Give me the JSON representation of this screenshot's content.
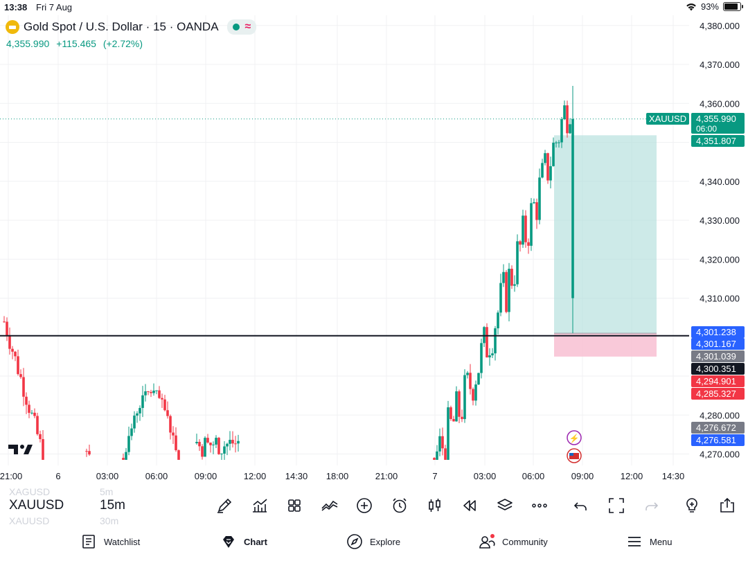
{
  "status_bar": {
    "time": "13:38",
    "date": "Fri 7 Aug",
    "battery": "93%"
  },
  "header": {
    "title": "Gold Spot / U.S. Dollar · 15 · OANDA",
    "price": "4,355.990",
    "change": "+115.465",
    "change_pct": "(+2.72%)",
    "up_color": "#089981",
    "down_color": "#f23645"
  },
  "price_axis": {
    "ticks": [
      "4,380.000",
      "4,370.000",
      "4,360.000",
      "4,340.000",
      "4,330.000",
      "4,320.000",
      "4,310.000",
      "4,280.000",
      "4,270.000"
    ],
    "tick_values": [
      4380,
      4370,
      4360,
      4340,
      4330,
      4320,
      4310,
      4280,
      4270
    ]
  },
  "time_axis": {
    "labels": [
      "21:00",
      "6",
      "03:00",
      "06:00",
      "09:00",
      "12:00",
      "14:30",
      "18:00",
      "21:00",
      "7",
      "03:00",
      "06:00",
      "09:00",
      "12:00",
      "14:30"
    ]
  },
  "price_tags": [
    {
      "label": "XAUUSD",
      "value": "4,355.990",
      "sub": "06:00",
      "price": 4355.99,
      "color": "#089981"
    },
    {
      "value": "4,351.807",
      "price": 4351.807,
      "color": "#089981"
    },
    {
      "value": "4,301.238",
      "price": 4301.238,
      "color": "#2962ff"
    },
    {
      "value": "4,301.167",
      "price": 4301.167,
      "color": "#2962ff"
    },
    {
      "value": "4,301.039",
      "price": 4301.039,
      "color": "#787b86"
    },
    {
      "value": "4,300.351",
      "price": 4300.351,
      "color": "#131722"
    },
    {
      "value": "4,294.901",
      "price": 4294.901,
      "color": "#f23645"
    },
    {
      "value": "4,285.327",
      "price": 4285.327,
      "color": "#f23645"
    },
    {
      "value": "4,276.672",
      "price": 4276.672,
      "color": "#787b86"
    },
    {
      "value": "4,276.581",
      "price": 4276.581,
      "color": "#2962ff"
    }
  ],
  "horizontal_line_price": 4300.351,
  "position_tool": {
    "entry": 4301.0,
    "target": 4351.807,
    "stop": 4295.0,
    "profit_color": "#b2dfdb",
    "loss_color": "#f8bbd0"
  },
  "toolbar": {
    "symbol": "XAUUSD",
    "symbol_prev": "XAGUSD",
    "symbol_next": "XAUUSD",
    "interval": "15m",
    "interval_prev": "5m",
    "interval_next": "30m",
    "icons": [
      "pencil-icon",
      "indicators-icon",
      "layouts-icon",
      "compare-icon",
      "add-icon",
      "alert-icon",
      "candles-icon",
      "replay-icon",
      "layers-icon",
      "more-icon",
      "undo-icon",
      "fullscreen-icon",
      "redo-icon",
      "ideas-icon",
      "share-icon"
    ]
  },
  "nav": {
    "watchlist": "Watchlist",
    "chart": "Chart",
    "explore": "Explore",
    "community": "Community",
    "menu": "Menu"
  },
  "chart_data": {
    "type": "candlestick",
    "symbol": "XAUUSD",
    "interval": "15",
    "ylim": [
      4267,
      4383
    ],
    "clusters": [
      {
        "start_x": 6,
        "end_x": 64,
        "low": 4270,
        "high": 4304,
        "trend": "down"
      },
      {
        "start_x": 125,
        "end_x": 132,
        "low": 4269,
        "high": 4271,
        "trend": "flat"
      },
      {
        "start_x": 178,
        "end_x": 258,
        "low": 4269,
        "high": 4286,
        "trend": "up-then-down"
      },
      {
        "start_x": 284,
        "end_x": 345,
        "low": 4269,
        "high": 4276,
        "trend": "flat"
      },
      {
        "start_x": 627,
        "end_x": 830,
        "low": 4269,
        "high": 4364,
        "trend": "up"
      }
    ],
    "last_price": 4355.99
  }
}
